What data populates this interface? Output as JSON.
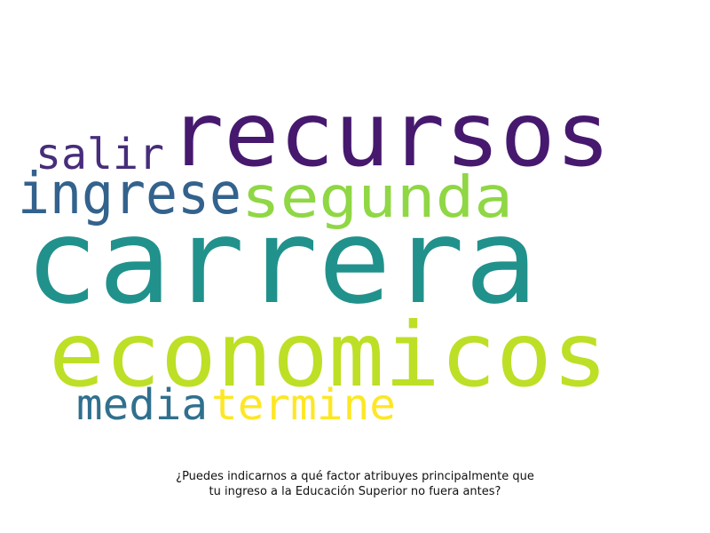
{
  "words": [
    {
      "text": "recursos",
      "color": "#46196e"
    },
    {
      "text": "salir",
      "color": "#472d7b"
    },
    {
      "text": "ingrese",
      "color": "#33628d"
    },
    {
      "text": "segunda",
      "color": "#8fd744"
    },
    {
      "text": "carrera",
      "color": "#21918c"
    },
    {
      "text": "economicos",
      "color": "#bddf26"
    },
    {
      "text": "media",
      "color": "#30708e"
    },
    {
      "text": "termine",
      "color": "#fde725"
    }
  ],
  "caption": {
    "line1": "¿Puedes indicarnos a qué factor atribuyes principalmente que",
    "line2": "tu ingreso a la Educación Superior no fuera antes?"
  }
}
